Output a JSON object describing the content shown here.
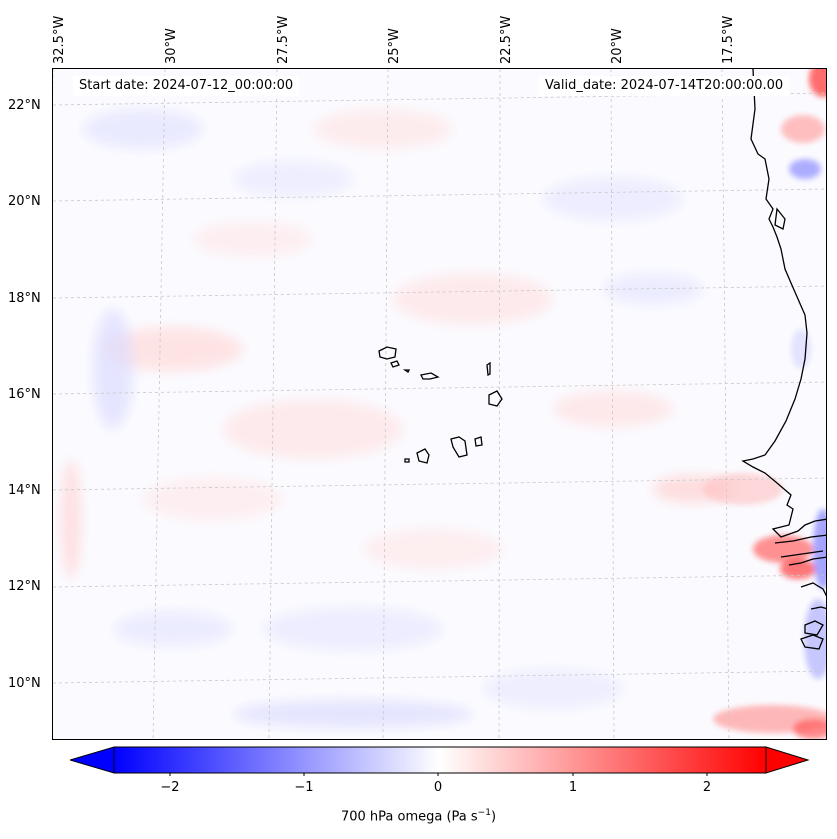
{
  "map": {
    "start_date": "Start date: 2024-07-12_00:00:00",
    "valid_date": "Valid_date: 2024-07-14T20:00:00.00",
    "lon_labels": [
      "32.5°W",
      "30°W",
      "27.5°W",
      "25°W",
      "22.5°W",
      "20°W",
      "17.5°W"
    ],
    "lat_labels": [
      "22°N",
      "20°N",
      "18°N",
      "16°N",
      "14°N",
      "12°N",
      "10°N"
    ],
    "coastline_color": "#000000",
    "gridline_color": "#c8c8c8"
  },
  "colorbar": {
    "ticks": [
      "−2",
      "−1",
      "0",
      "1",
      "2"
    ],
    "label_main": "700 hPa omega (Pa s",
    "label_sup": "−1",
    "label_end": ")",
    "cmap": "bwr",
    "min_color": "#0000ff",
    "mid_color": "#ffffff",
    "max_color": "#ff0000",
    "range": [
      -2.6,
      2.6
    ],
    "extend": "both"
  }
}
